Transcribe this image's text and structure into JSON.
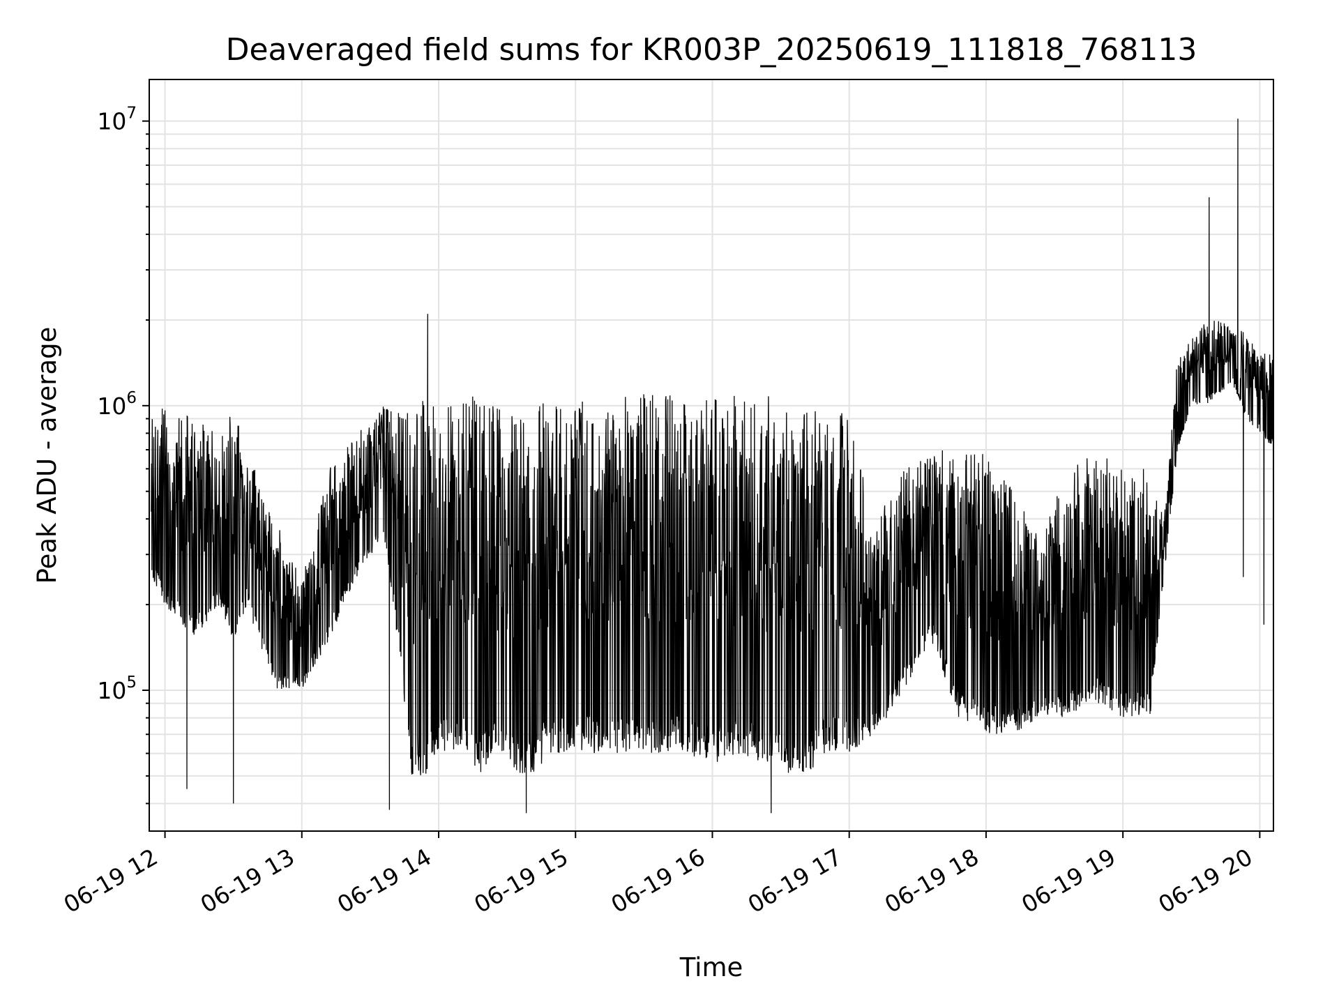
{
  "chart_data": {
    "type": "line",
    "title": "Deaveraged field sums for KR003P_20250619_111818_768113",
    "xlabel": "Time",
    "ylabel": "Peak ADU - average",
    "x_ticks": [
      "06-19 12",
      "06-19 13",
      "06-19 14",
      "06-19 15",
      "06-19 16",
      "06-19 17",
      "06-19 18",
      "06-19 19",
      "06-19 20"
    ],
    "x_tick_hours": [
      12,
      13,
      14,
      15,
      16,
      17,
      18,
      19,
      20
    ],
    "xlim_hours": [
      11.885,
      20.1
    ],
    "y_scale": "log",
    "ylim": [
      32000,
      14000000
    ],
    "y_ticks": [
      {
        "value": 100000,
        "base": "10",
        "exp": "5"
      },
      {
        "value": 1000000,
        "base": "10",
        "exp": "6"
      },
      {
        "value": 10000000,
        "base": "10",
        "exp": "7"
      }
    ],
    "grid": true,
    "line_color": "#000000",
    "series": [
      {
        "x_hours": [
          11.9,
          12.0,
          12.2,
          12.4,
          12.5,
          12.6,
          12.8,
          13.0,
          13.2,
          13.4,
          13.6,
          13.7,
          13.8,
          13.9,
          14.0,
          14.1,
          14.2,
          14.3,
          14.4,
          14.6,
          14.7,
          14.8,
          15.0,
          15.2,
          15.4,
          15.6,
          15.8,
          16.0,
          16.2,
          16.4,
          16.6,
          16.7,
          16.8,
          17.0,
          17.2,
          17.4,
          17.6,
          17.8,
          18.0,
          18.2,
          18.4,
          18.6,
          18.8,
          19.0,
          19.2,
          19.3,
          19.4,
          19.5,
          19.6,
          19.7,
          19.8,
          19.9,
          20.0,
          20.1
        ],
        "lo": [
          250000,
          200000,
          150000,
          200000,
          150000,
          200000,
          100000,
          100000,
          150000,
          250000,
          350000,
          150000,
          50000,
          50000,
          60000,
          60000,
          60000,
          50000,
          60000,
          50000,
          50000,
          60000,
          60000,
          60000,
          60000,
          60000,
          60000,
          55000,
          60000,
          55000,
          50000,
          50000,
          60000,
          60000,
          70000,
          100000,
          150000,
          80000,
          70000,
          70000,
          80000,
          80000,
          90000,
          80000,
          80000,
          250000,
          700000,
          1000000,
          1000000,
          1100000,
          1200000,
          900000,
          800000,
          700000
        ],
        "hi": [
          900000,
          1000000,
          900000,
          800000,
          1000000,
          700000,
          400000,
          250000,
          600000,
          800000,
          1000000,
          1000000,
          1000000,
          1100000,
          1000000,
          1000000,
          1200000,
          1100000,
          1000000,
          900000,
          1000000,
          1100000,
          1100000,
          1000000,
          1100000,
          1100000,
          1100000,
          1100000,
          1100000,
          1100000,
          900000,
          1000000,
          1100000,
          900000,
          400000,
          600000,
          700000,
          700000,
          700000,
          500000,
          350000,
          600000,
          700000,
          600000,
          600000,
          400000,
          1500000,
          1700000,
          2000000,
          2000000,
          1900000,
          1800000,
          1500000,
          1600000
        ],
        "peaks": [
          {
            "x_hours": 13.92,
            "value": 2100000
          },
          {
            "x_hours": 19.63,
            "value": 5400000
          },
          {
            "x_hours": 19.84,
            "value": 10200000
          }
        ],
        "dips": [
          {
            "x_hours": 12.16,
            "value": 45000
          },
          {
            "x_hours": 12.5,
            "value": 40000
          },
          {
            "x_hours": 13.64,
            "value": 38000
          },
          {
            "x_hours": 14.64,
            "value": 37000
          },
          {
            "x_hours": 16.43,
            "value": 37000
          },
          {
            "x_hours": 19.88,
            "value": 250000
          },
          {
            "x_hours": 20.03,
            "value": 170000
          }
        ]
      }
    ]
  }
}
